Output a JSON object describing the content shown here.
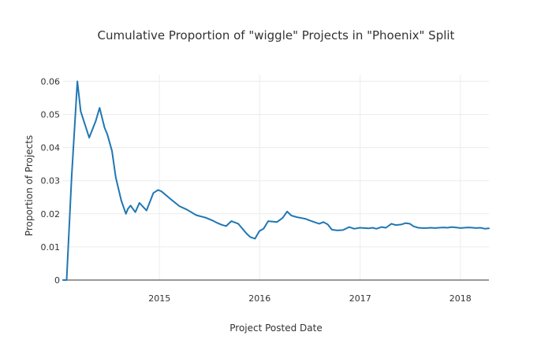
{
  "chart_data": {
    "type": "line",
    "title": "Cumulative Proportion of \"wiggle\" Projects in \"Phoenix\" Split",
    "xlabel": "Project Posted Date",
    "ylabel": "Proportion of Projects",
    "x_tick_labels": [
      "2015",
      "2016",
      "2017",
      "2018"
    ],
    "x_tick_values": [
      "2015-01-01",
      "2016-01-01",
      "2017-01-01",
      "2018-01-01"
    ],
    "y_tick_labels": [
      "0",
      "0.01",
      "0.02",
      "0.03",
      "0.04",
      "0.05",
      "0.06"
    ],
    "xlim": [
      "2014-01-15",
      "2018-04-15"
    ],
    "ylim": [
      0,
      0.062
    ],
    "grid": true,
    "line_color": "#1f77b4",
    "series": [
      {
        "x": [
          "2014-01-15",
          "2014-01-28",
          "2014-02-15",
          "2014-03-08",
          "2014-03-20",
          "2014-04-20",
          "2014-05-14",
          "2014-05-28",
          "2014-06-15",
          "2014-06-25",
          "2014-07-12",
          "2014-07-26",
          "2014-08-15",
          "2014-09-01",
          "2014-09-08",
          "2014-09-18",
          "2014-10-05",
          "2014-10-20",
          "2014-11-15",
          "2014-12-10",
          "2014-12-27",
          "2015-01-08",
          "2015-02-10",
          "2015-03-15",
          "2015-04-10",
          "2015-05-15",
          "2015-06-20",
          "2015-07-15",
          "2015-08-01",
          "2015-08-15",
          "2015-09-01",
          "2015-09-20",
          "2015-10-15",
          "2015-11-15",
          "2015-11-28",
          "2015-12-15",
          "2015-12-31",
          "2016-01-15",
          "2016-02-01",
          "2016-03-04",
          "2016-03-25",
          "2016-04-10",
          "2016-04-25",
          "2016-05-15",
          "2016-06-15",
          "2016-07-01",
          "2016-07-18",
          "2016-08-05",
          "2016-08-20",
          "2016-09-05",
          "2016-09-20",
          "2016-10-10",
          "2016-10-31",
          "2016-11-22",
          "2016-12-10",
          "2016-12-31",
          "2017-01-15",
          "2017-02-01",
          "2017-02-15",
          "2017-03-01",
          "2017-03-20",
          "2017-04-05",
          "2017-04-25",
          "2017-05-10",
          "2017-06-01",
          "2017-06-15",
          "2017-07-01",
          "2017-07-15",
          "2017-08-01",
          "2017-08-15",
          "2017-09-01",
          "2017-09-15",
          "2017-10-01",
          "2017-10-15",
          "2017-11-01",
          "2017-11-15",
          "2017-12-01",
          "2017-12-15",
          "2018-01-01",
          "2018-01-15",
          "2018-02-01",
          "2018-02-15",
          "2018-03-01",
          "2018-03-15",
          "2018-04-01",
          "2018-04-15"
        ],
        "y": [
          0,
          0,
          0.031,
          0.06,
          0.051,
          0.043,
          0.048,
          0.052,
          0.046,
          0.044,
          0.039,
          0.031,
          0.024,
          0.02,
          0.0215,
          0.0225,
          0.0205,
          0.0233,
          0.021,
          0.0263,
          0.0272,
          0.0268,
          0.0245,
          0.0223,
          0.0213,
          0.0196,
          0.0188,
          0.0179,
          0.0172,
          0.0167,
          0.0163,
          0.0178,
          0.017,
          0.014,
          0.013,
          0.0125,
          0.0148,
          0.0155,
          0.0178,
          0.0175,
          0.0188,
          0.0207,
          0.0195,
          0.019,
          0.0185,
          0.018,
          0.0175,
          0.017,
          0.0175,
          0.0168,
          0.0152,
          0.015,
          0.0151,
          0.016,
          0.0155,
          0.0158,
          0.0157,
          0.0156,
          0.0158,
          0.0155,
          0.016,
          0.0158,
          0.017,
          0.0166,
          0.0168,
          0.0172,
          0.017,
          0.0162,
          0.0158,
          0.0157,
          0.0157,
          0.0158,
          0.0157,
          0.0158,
          0.0159,
          0.0158,
          0.016,
          0.0159,
          0.0157,
          0.0158,
          0.0159,
          0.0158,
          0.0157,
          0.0158,
          0.0155,
          0.0156
        ]
      }
    ]
  }
}
